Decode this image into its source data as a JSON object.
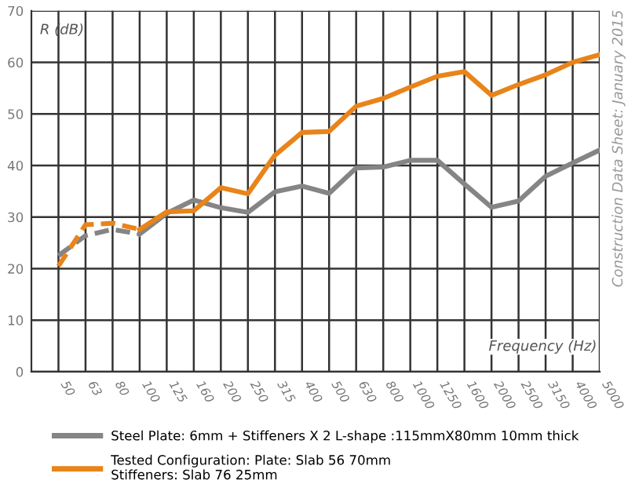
{
  "chart_data": {
    "type": "line",
    "categories": [
      "50",
      "63",
      "80",
      "100",
      "125",
      "160",
      "200",
      "250",
      "315",
      "400",
      "500",
      "630",
      "800",
      "1000",
      "1250",
      "1600",
      "2000",
      "2500",
      "3150",
      "4000",
      "5000"
    ],
    "series": [
      {
        "name": "Steel Plate: 6mm + Stiffeners X 2 L-shape :115mmX80mm 10mm thick",
        "color": "#858585",
        "line_style": "solid",
        "values": [
          null,
          null,
          null,
          26.7,
          30.7,
          33.3,
          31.8,
          30.9,
          34.9,
          36,
          34.6,
          39.5,
          39.7,
          41,
          41,
          36.4,
          31.9,
          33.1,
          37.9,
          40.5,
          43
        ]
      },
      {
        "color": "#858585",
        "line_style": "dashed",
        "values": [
          22.5,
          26.4,
          27.6,
          26.7,
          null,
          null,
          null,
          null,
          null,
          null,
          null,
          null,
          null,
          null,
          null,
          null,
          null,
          null,
          null,
          null,
          null
        ]
      },
      {
        "name": "Tested Configuration: Plate: Slab 56 70mm\nStiffeners: Slab 76 25mm",
        "color": "#e8841a",
        "line_style": "solid",
        "values": [
          null,
          null,
          null,
          27.6,
          31,
          31.2,
          35.7,
          34.5,
          42,
          46.4,
          46.6,
          51.5,
          53,
          55.2,
          57.3,
          58.2,
          53.6,
          55.7,
          57.6,
          60,
          61.5
        ]
      },
      {
        "color": "#e8841a",
        "line_style": "dashed",
        "values": [
          20.5,
          28.5,
          28.8,
          27.6,
          null,
          null,
          null,
          null,
          null,
          null,
          null,
          null,
          null,
          null,
          null,
          null,
          null,
          null,
          null,
          null,
          null
        ]
      }
    ],
    "ylim": [
      0,
      70
    ],
    "yticks": [
      0,
      10,
      20,
      30,
      40,
      50,
      60,
      70
    ],
    "xlabel": "Frequency (Hz)",
    "ylabel": "R (dB)",
    "annotations": [
      "Construction Data Sheet: January 2015"
    ],
    "grid": true,
    "legend": "bottom",
    "marker": "none"
  }
}
